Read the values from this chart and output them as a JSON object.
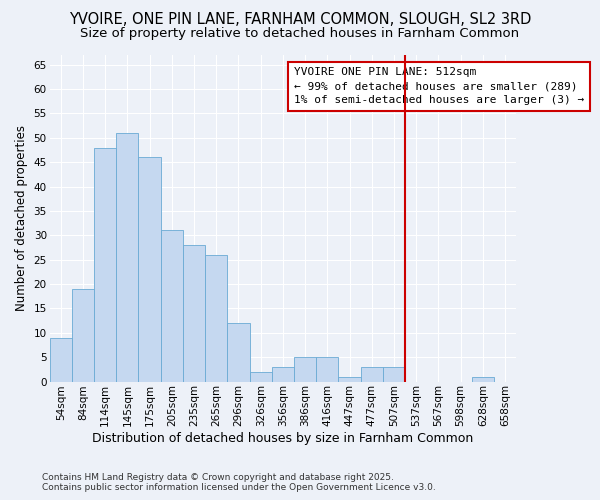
{
  "title": "YVOIRE, ONE PIN LANE, FARNHAM COMMON, SLOUGH, SL2 3RD",
  "subtitle": "Size of property relative to detached houses in Farnham Common",
  "xlabel": "Distribution of detached houses by size in Farnham Common",
  "ylabel": "Number of detached properties",
  "categories": [
    "54sqm",
    "84sqm",
    "114sqm",
    "145sqm",
    "175sqm",
    "205sqm",
    "235sqm",
    "265sqm",
    "296sqm",
    "326sqm",
    "356sqm",
    "386sqm",
    "416sqm",
    "447sqm",
    "477sqm",
    "507sqm",
    "537sqm",
    "567sqm",
    "598sqm",
    "628sqm",
    "658sqm"
  ],
  "values": [
    9,
    19,
    48,
    51,
    46,
    31,
    28,
    26,
    12,
    2,
    3,
    5,
    5,
    1,
    3,
    3,
    0,
    0,
    0,
    1,
    0
  ],
  "bar_color": "#c5d8f0",
  "bar_edge_color": "#6aaad4",
  "background_color": "#edf1f8",
  "vline_x_index": 15,
  "vline_color": "#cc0000",
  "annotation_text": "YVOIRE ONE PIN LANE: 512sqm\n← 99% of detached houses are smaller (289)\n1% of semi-detached houses are larger (3) →",
  "annotation_box_color": "#cc0000",
  "ylim": [
    0,
    67
  ],
  "yticks": [
    0,
    5,
    10,
    15,
    20,
    25,
    30,
    35,
    40,
    45,
    50,
    55,
    60,
    65
  ],
  "footer": "Contains HM Land Registry data © Crown copyright and database right 2025.\nContains public sector information licensed under the Open Government Licence v3.0.",
  "title_fontsize": 10.5,
  "subtitle_fontsize": 9.5,
  "xlabel_fontsize": 9,
  "ylabel_fontsize": 8.5,
  "tick_fontsize": 7.5,
  "annotation_fontsize": 8
}
